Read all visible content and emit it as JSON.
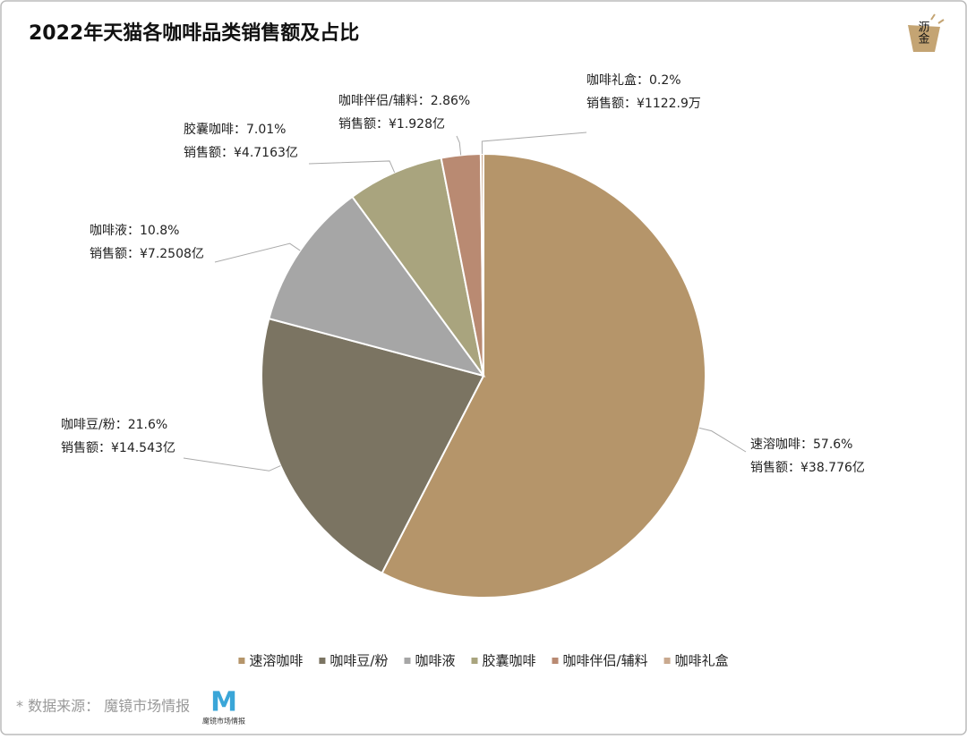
{
  "chart_data": {
    "type": "pie",
    "title": "2022年天猫各咖啡品类销售额及占比",
    "categories": [
      "速溶咖啡",
      "咖啡豆/粉",
      "咖啡液",
      "胶囊咖啡",
      "咖啡伴侣/辅料",
      "咖啡礼盒"
    ],
    "values": [
      57.6,
      21.6,
      10.8,
      7.01,
      2.86,
      0.2
    ],
    "value_labels": [
      "速溶咖啡：57.6%",
      "咖啡豆/粉：21.6%",
      "咖啡液：10.8%",
      "胶囊咖啡：7.01%",
      "咖啡伴侣/辅料：2.86%",
      "咖啡礼盒：0.2%"
    ],
    "sales_labels": [
      "销售额：¥38.776亿",
      "销售额：¥14.543亿",
      "销售额：¥7.2508亿",
      "销售额：¥4.7163亿",
      "销售额：¥1.928亿",
      "销售额：¥1122.9万"
    ],
    "colors": [
      "#b5956a",
      "#7b7462",
      "#a6a6a6",
      "#a9a47e",
      "#b98a72",
      "#c9a98f"
    ],
    "legend": "bottom",
    "source": "* 数据来源： 魔镜市场情报",
    "corner_logo": "沥金",
    "source_logo": "M",
    "source_logo_name": "魔镜市场情报"
  }
}
